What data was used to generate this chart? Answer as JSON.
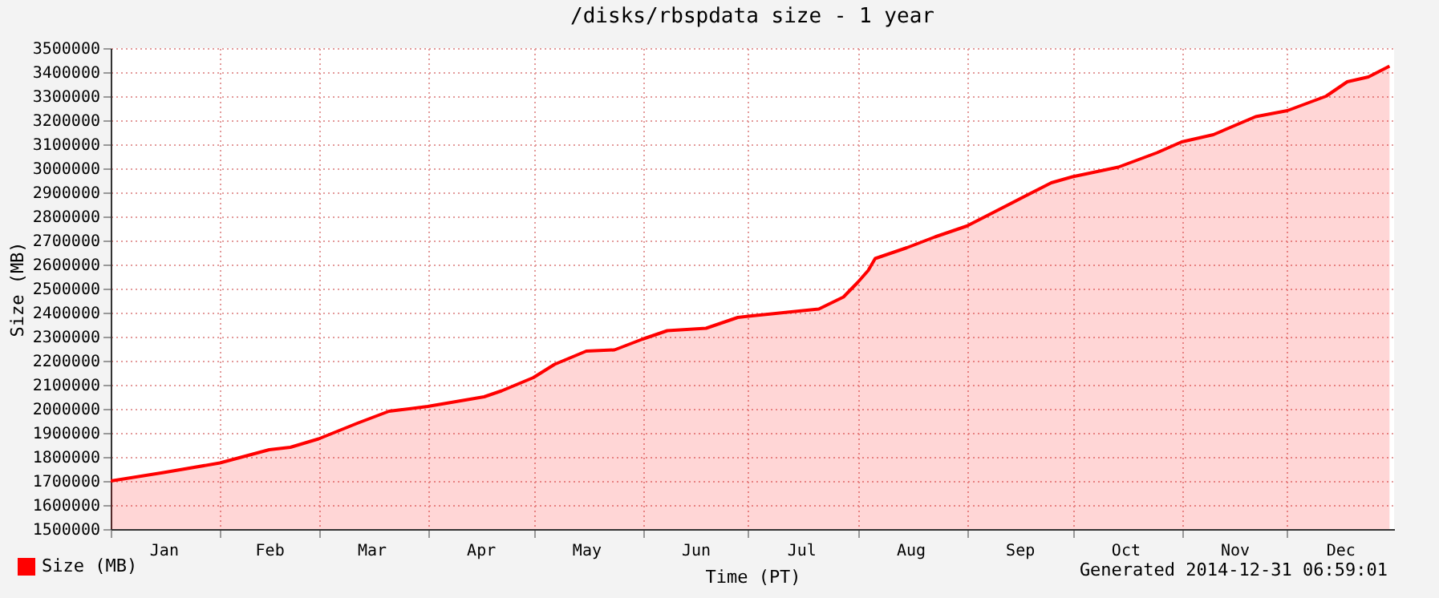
{
  "chart_data": {
    "type": "area",
    "title": "/disks/rbspdata size - 1 year",
    "xlabel": "Time (PT)",
    "ylabel": "Size (MB)",
    "annotations": [
      "Generated 2014-12-31 06:59:01"
    ],
    "x": [
      "2014-01-01",
      "2014-01-16",
      "2014-02-01",
      "2014-02-15",
      "2014-02-21",
      "2014-03-01",
      "2014-03-12",
      "2014-03-21",
      "2014-04-01",
      "2014-04-17",
      "2014-04-22",
      "2014-05-01",
      "2014-05-07",
      "2014-05-16",
      "2014-05-24",
      "2014-06-01",
      "2014-06-08",
      "2014-06-19",
      "2014-06-23",
      "2014-06-28",
      "2014-07-01",
      "2014-07-21",
      "2014-07-28",
      "2014-08-01",
      "2014-08-04",
      "2014-08-06",
      "2014-08-15",
      "2014-08-23",
      "2014-09-01",
      "2014-09-09",
      "2014-09-25",
      "2014-10-01",
      "2014-10-14",
      "2014-10-25",
      "2014-11-01",
      "2014-11-10",
      "2014-11-22",
      "2014-12-01",
      "2014-12-12",
      "2014-12-18",
      "2014-12-24",
      "2014-12-30"
    ],
    "series": [
      {
        "name": "Size (MB)",
        "color": "#ff0000",
        "values": [
          1700000,
          1735000,
          1775000,
          1830000,
          1840000,
          1875000,
          1940000,
          1990000,
          2010000,
          2050000,
          2075000,
          2130000,
          2185000,
          2240000,
          2245000,
          2290000,
          2325000,
          2335000,
          2355000,
          2380000,
          2385000,
          2415000,
          2465000,
          2525000,
          2575000,
          2625000,
          2670000,
          2715000,
          2760000,
          2820000,
          2940000,
          2965000,
          3005000,
          3065000,
          3110000,
          3140000,
          3215000,
          3240000,
          3300000,
          3360000,
          3380000,
          3425000
        ]
      }
    ],
    "xlim": [
      "2014-01-01",
      "2014-12-31T07:00"
    ],
    "xticks": [
      {
        "value": "2014-01-01",
        "label": null
      },
      {
        "value": "2014-01-16",
        "label": "Jan"
      },
      {
        "value": "2014-02-01",
        "label": null
      },
      {
        "value": "2014-02-15",
        "label": "Feb"
      },
      {
        "value": "2014-03-01",
        "label": null
      },
      {
        "value": "2014-03-16",
        "label": "Mar"
      },
      {
        "value": "2014-04-01",
        "label": null
      },
      {
        "value": "2014-04-16",
        "label": "Apr"
      },
      {
        "value": "2014-05-01",
        "label": null
      },
      {
        "value": "2014-05-16",
        "label": "May"
      },
      {
        "value": "2014-06-01",
        "label": null
      },
      {
        "value": "2014-06-16",
        "label": "Jun"
      },
      {
        "value": "2014-07-01",
        "label": null
      },
      {
        "value": "2014-07-16",
        "label": "Jul"
      },
      {
        "value": "2014-08-01",
        "label": null
      },
      {
        "value": "2014-08-16",
        "label": "Aug"
      },
      {
        "value": "2014-09-01",
        "label": null
      },
      {
        "value": "2014-09-16",
        "label": "Sep"
      },
      {
        "value": "2014-10-01",
        "label": null
      },
      {
        "value": "2014-10-16",
        "label": "Oct"
      },
      {
        "value": "2014-11-01",
        "label": null
      },
      {
        "value": "2014-11-16",
        "label": "Nov"
      },
      {
        "value": "2014-12-01",
        "label": null
      },
      {
        "value": "2014-12-16",
        "label": "Dec"
      }
    ],
    "ylim": [
      1500000,
      3500000
    ],
    "yticks": [
      1500000,
      1600000,
      1700000,
      1800000,
      1900000,
      2000000,
      2100000,
      2200000,
      2300000,
      2400000,
      2500000,
      2600000,
      2700000,
      2800000,
      2900000,
      3000000,
      3100000,
      3200000,
      3300000,
      3400000,
      3500000
    ],
    "grid": true,
    "legend": "bottom left"
  }
}
